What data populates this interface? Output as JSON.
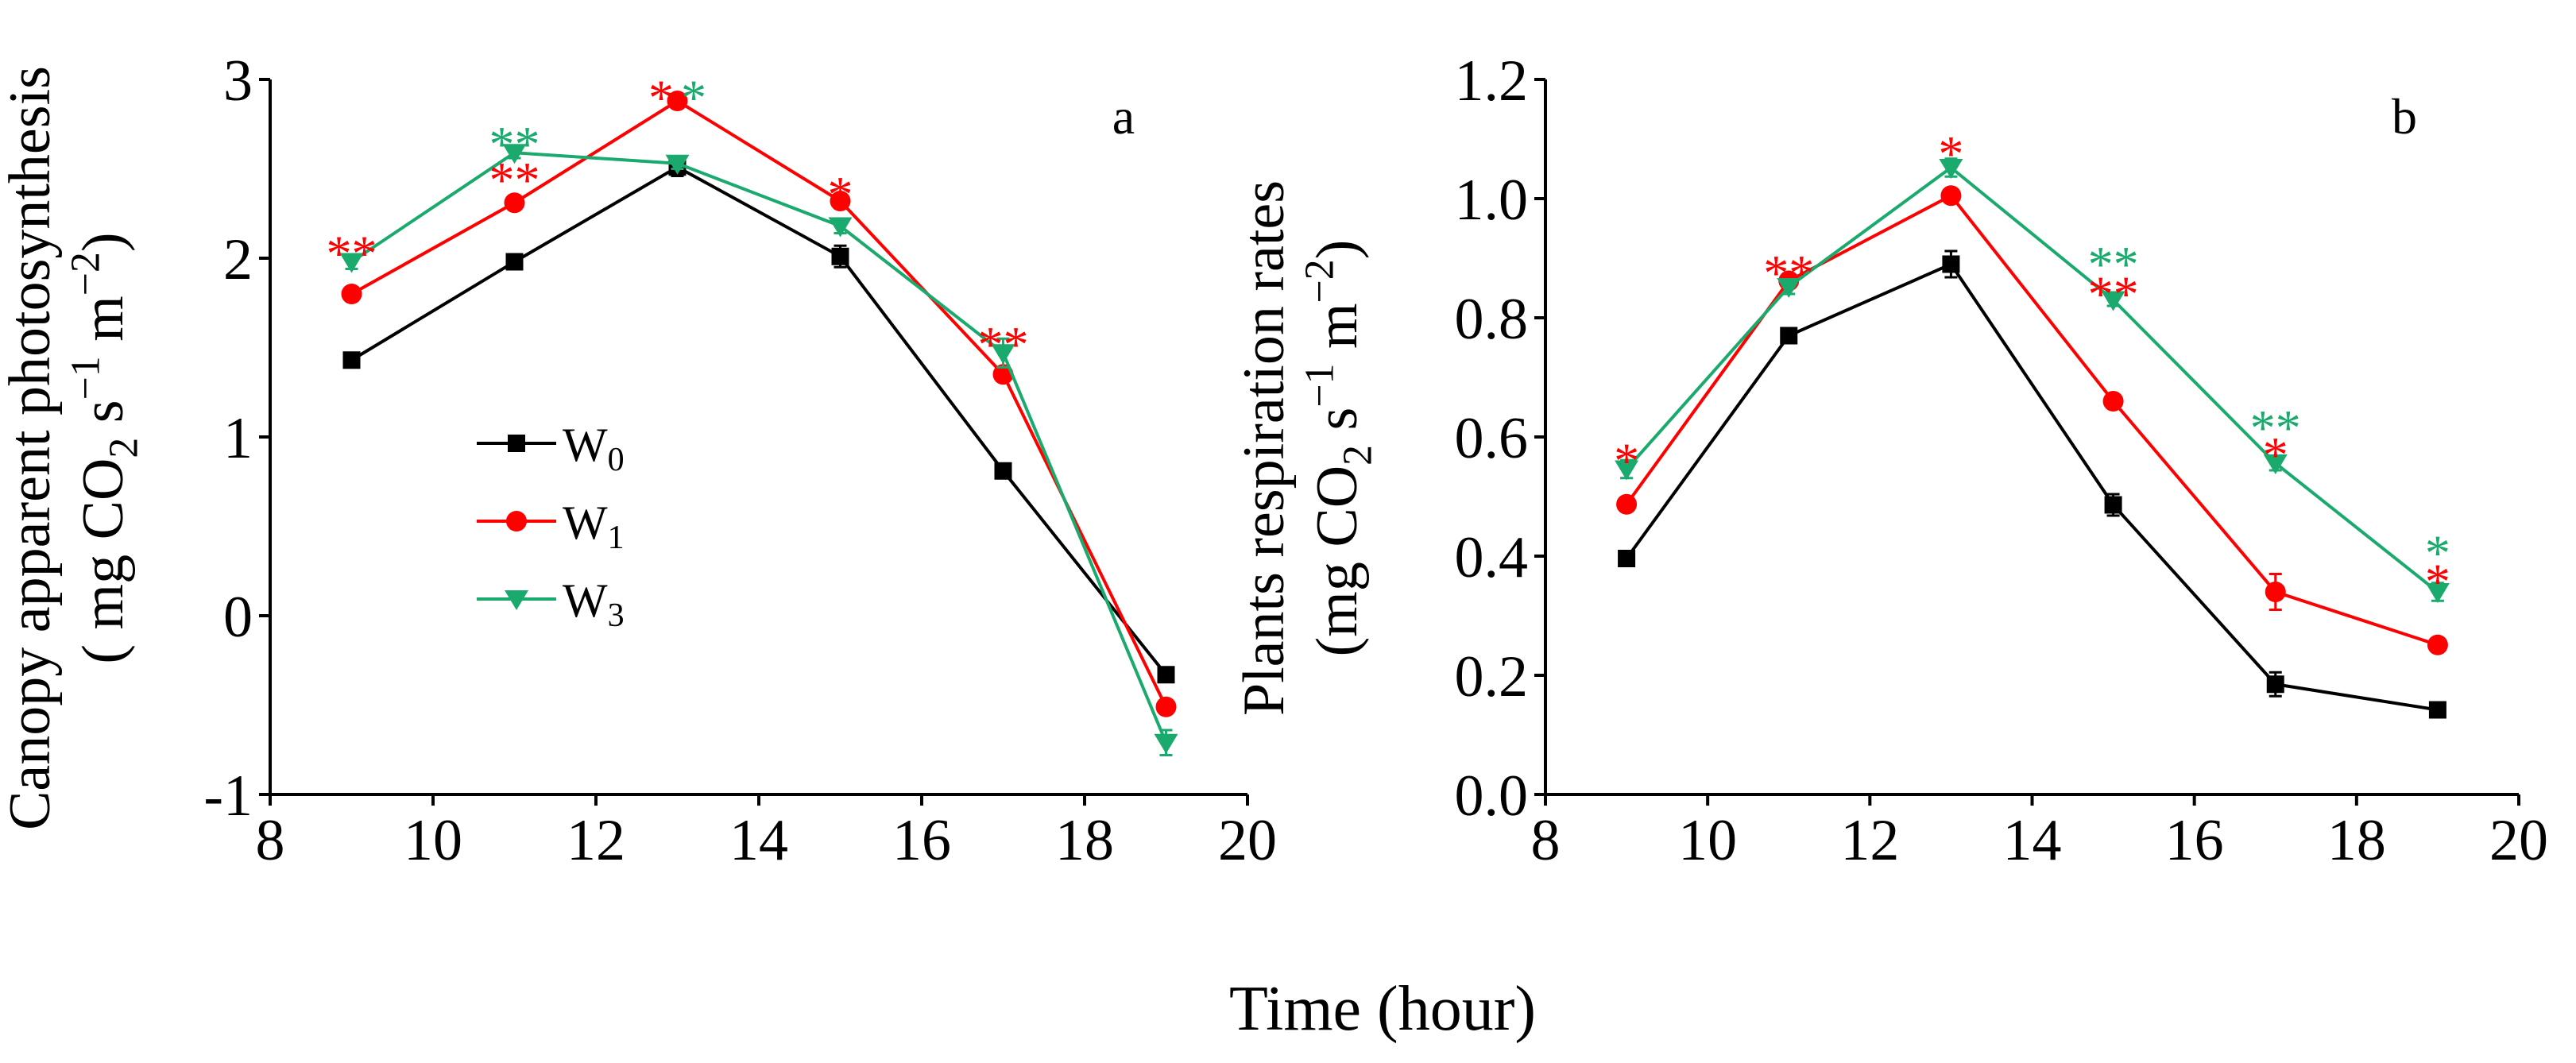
{
  "figure": {
    "xlabel": "Time (hour)",
    "colors": {
      "W0": "#000000",
      "W1": "#ff0000",
      "W3": "#1aaa6e"
    }
  },
  "chart_data": [
    {
      "type": "line",
      "panel_label": "a",
      "ylabel": "Canopy apparent photosynthesis",
      "yunit": "( mg CO2 s−1 m−2)",
      "xlim": [
        8,
        20
      ],
      "xticks": [
        "8",
        "10",
        "12",
        "14",
        "16",
        "18",
        "20"
      ],
      "ylim": [
        -1,
        3
      ],
      "yticks": [
        "-1",
        "0",
        "1",
        "2",
        "3"
      ],
      "legend": {
        "position": "center-left",
        "entries": [
          "W0",
          "W1",
          "W3"
        ]
      },
      "x": [
        9,
        11,
        13,
        15,
        17,
        19
      ],
      "series": [
        {
          "name": "W0",
          "marker": "square",
          "values": [
            1.43,
            1.98,
            2.51,
            2.01,
            0.81,
            -0.33
          ],
          "errors": [
            0.03,
            0.03,
            0.05,
            0.06,
            0.03,
            0.03
          ]
        },
        {
          "name": "W1",
          "marker": "circle",
          "values": [
            1.8,
            2.31,
            2.88,
            2.32,
            1.35,
            -0.51
          ],
          "errors": [
            0.03,
            0.03,
            0.04,
            0.04,
            0.04,
            0.04
          ]
        },
        {
          "name": "W3",
          "marker": "triangle",
          "values": [
            1.98,
            2.59,
            2.53,
            2.18,
            1.47,
            -0.71
          ],
          "errors": [
            0.04,
            0.03,
            0.03,
            0.04,
            0.08,
            0.07
          ]
        }
      ],
      "significance": [
        {
          "x": 9,
          "level": 2.11,
          "text": "**",
          "series": "W1"
        },
        {
          "x": 11,
          "level": 2.72,
          "text": "**",
          "series": "W3"
        },
        {
          "x": 11,
          "level": 2.52,
          "text": "**",
          "series": "W1"
        },
        {
          "x": 12.8,
          "level": 2.98,
          "text": "*",
          "series": "W1"
        },
        {
          "x": 13.2,
          "level": 2.98,
          "text": "*",
          "series": "W3"
        },
        {
          "x": 15,
          "level": 2.44,
          "text": "*",
          "series": "W1"
        },
        {
          "x": 17,
          "level": 1.6,
          "text": "**",
          "series": "W1"
        }
      ]
    },
    {
      "type": "line",
      "panel_label": "b",
      "ylabel": "Plants respiration rates",
      "yunit": "(mg CO2 s−1 m−2)",
      "xlim": [
        8,
        20
      ],
      "xticks": [
        "8",
        "10",
        "12",
        "14",
        "16",
        "18",
        "20"
      ],
      "ylim": [
        0,
        1.2
      ],
      "yticks": [
        "0.0",
        "0.2",
        "0.4",
        "0.6",
        "0.8",
        "1.0",
        "1.2"
      ],
      "x": [
        9,
        11,
        13,
        15,
        17,
        19
      ],
      "series": [
        {
          "name": "W0",
          "marker": "square",
          "values": [
            0.396,
            0.77,
            0.89,
            0.486,
            0.185,
            0.142
          ],
          "errors": [
            0.008,
            0.01,
            0.022,
            0.018,
            0.02,
            0.008
          ]
        },
        {
          "name": "W1",
          "marker": "circle",
          "values": [
            0.487,
            0.862,
            1.005,
            0.66,
            0.34,
            0.251
          ],
          "errors": [
            0.01,
            0.012,
            0.01,
            0.01,
            0.03,
            0.008
          ]
        },
        {
          "name": "W3",
          "marker": "triangle",
          "values": [
            0.546,
            0.852,
            1.052,
            0.83,
            0.556,
            0.34
          ],
          "errors": [
            0.015,
            0.012,
            0.015,
            0.01,
            0.012,
            0.015
          ]
        }
      ],
      "significance": [
        {
          "x": 9,
          "level": 0.585,
          "text": "*",
          "series": "W1"
        },
        {
          "x": 11,
          "level": 0.9,
          "text": "**",
          "series": "W1"
        },
        {
          "x": 13,
          "level": 1.1,
          "text": "*",
          "series": "W1"
        },
        {
          "x": 15,
          "level": 0.915,
          "text": "**",
          "series": "W3"
        },
        {
          "x": 15,
          "level": 0.865,
          "text": "**",
          "series": "W1"
        },
        {
          "x": 17,
          "level": 0.64,
          "text": "**",
          "series": "W3"
        },
        {
          "x": 17,
          "level": 0.595,
          "text": "*",
          "series": "W1"
        },
        {
          "x": 19,
          "level": 0.43,
          "text": "*",
          "series": "W3"
        },
        {
          "x": 19,
          "level": 0.382,
          "text": "*",
          "series": "W1"
        }
      ]
    }
  ]
}
